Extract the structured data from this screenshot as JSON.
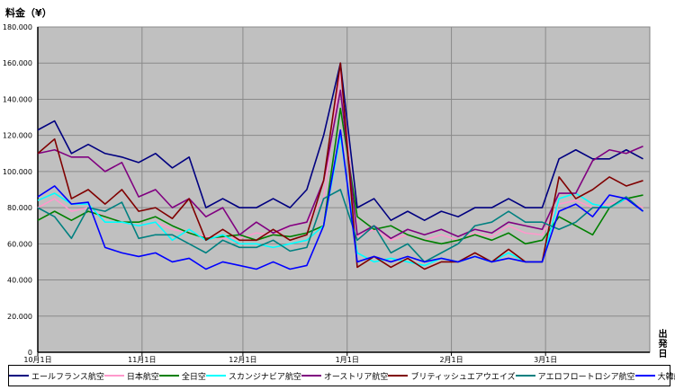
{
  "chart_data": {
    "type": "line",
    "ylabel": "料金（¥）",
    "xlabel": "出発日",
    "ylim": [
      0,
      180000
    ],
    "yticks": [
      "0",
      "20.000",
      "40.000",
      "60.000",
      "80.000",
      "100.000",
      "120.000",
      "140.000",
      "160.000",
      "180.000"
    ],
    "xticks": [
      "10月1日",
      "11月1日",
      "12月1日",
      "1月1日",
      "2月1日",
      "3月1日"
    ],
    "grid": true,
    "legend_position": "bottom",
    "x": [
      "10/1",
      "10/6",
      "10/11",
      "10/16",
      "10/21",
      "10/26",
      "10/31",
      "11/5",
      "11/10",
      "11/15",
      "11/20",
      "11/25",
      "11/30",
      "12/5",
      "12/10",
      "12/15",
      "12/20",
      "12/25",
      "12/30",
      "1/4",
      "1/9",
      "1/14",
      "1/19",
      "1/24",
      "1/29",
      "2/3",
      "2/8",
      "2/13",
      "2/18",
      "2/23",
      "2/28",
      "3/5",
      "3/10",
      "3/15",
      "3/20",
      "3/25",
      "3/30"
    ],
    "series": [
      {
        "name": "エールフランス航空",
        "color": "#000080",
        "values": [
          123000,
          128000,
          110000,
          115000,
          110000,
          108000,
          105000,
          110000,
          102000,
          108000,
          80000,
          85000,
          80000,
          80000,
          85000,
          80000,
          90000,
          120000,
          160000,
          80000,
          85000,
          73000,
          78000,
          73000,
          78000,
          75000,
          80000,
          80000,
          85000,
          80000,
          80000,
          107000,
          112000,
          107000,
          107000,
          112000,
          107000
        ]
      },
      {
        "name": "日本航空",
        "color": "#ff99cc",
        "values": [
          80000,
          85000,
          78000,
          80000,
          75000,
          72000,
          70000,
          72000,
          68000,
          66000,
          64000,
          63000,
          63000,
          66000,
          65000,
          70000,
          72000,
          85000,
          155000,
          64000,
          68000,
          62000,
          65000,
          62000,
          65000,
          62000,
          66000,
          64000,
          70000,
          66000,
          65000,
          82000,
          84000,
          80000,
          82000,
          84000,
          80000
        ]
      },
      {
        "name": "全日空",
        "color": "#008000",
        "values": [
          73000,
          78000,
          73000,
          78000,
          75000,
          72000,
          72000,
          75000,
          70000,
          66000,
          63000,
          64000,
          65000,
          62000,
          65000,
          64000,
          66000,
          70000,
          135000,
          75000,
          68000,
          70000,
          65000,
          62000,
          60000,
          62000,
          65000,
          62000,
          66000,
          60000,
          62000,
          75000,
          70000,
          65000,
          80000,
          85000,
          87000
        ]
      },
      {
        "name": "スカンジナビア航空",
        "color": "#00ffff",
        "values": [
          84000,
          88000,
          82000,
          82000,
          72000,
          72000,
          70000,
          72000,
          62000,
          68000,
          62000,
          65000,
          60000,
          60000,
          58000,
          60000,
          62000,
          70000,
          120000,
          55000,
          50000,
          52000,
          50000,
          48000,
          52000,
          50000,
          53000,
          50000,
          55000,
          50000,
          50000,
          85000,
          88000,
          82000,
          80000,
          85000,
          78000
        ]
      },
      {
        "name": "オーストリア航空",
        "color": "#800080",
        "values": [
          110000,
          112000,
          108000,
          108000,
          100000,
          105000,
          86000,
          90000,
          80000,
          85000,
          75000,
          80000,
          65000,
          72000,
          66000,
          70000,
          72000,
          95000,
          145000,
          65000,
          70000,
          63000,
          68000,
          65000,
          68000,
          64000,
          68000,
          66000,
          72000,
          70000,
          68000,
          88000,
          88000,
          106000,
          112000,
          110000,
          114000
        ]
      },
      {
        "name": "ブリティッシュエアウエイズ",
        "color": "#800000",
        "values": [
          110000,
          118000,
          85000,
          90000,
          82000,
          90000,
          78000,
          80000,
          74000,
          85000,
          62000,
          68000,
          62000,
          62000,
          68000,
          62000,
          65000,
          95000,
          160000,
          47000,
          53000,
          47000,
          52000,
          46000,
          50000,
          50000,
          55000,
          50000,
          57000,
          50000,
          50000,
          97000,
          85000,
          90000,
          97000,
          92000,
          95000
        ]
      },
      {
        "name": "アエロフロートロシア航空",
        "color": "#008080",
        "values": [
          80000,
          75000,
          63000,
          80000,
          78000,
          83000,
          63000,
          65000,
          65000,
          60000,
          55000,
          62000,
          58000,
          58000,
          62000,
          56000,
          58000,
          85000,
          90000,
          62000,
          70000,
          55000,
          60000,
          50000,
          55000,
          60000,
          70000,
          72000,
          78000,
          72000,
          72000,
          68000,
          72000,
          80000,
          80000,
          86000,
          78000
        ]
      },
      {
        "name": "大韓航空",
        "color": "#0000ff",
        "values": [
          86000,
          92000,
          82000,
          83000,
          58000,
          55000,
          53000,
          55000,
          50000,
          52000,
          46000,
          50000,
          48000,
          46000,
          50000,
          46000,
          48000,
          70000,
          123000,
          50000,
          53000,
          50000,
          53000,
          50000,
          52000,
          50000,
          53000,
          50000,
          52000,
          50000,
          50000,
          78000,
          82000,
          75000,
          87000,
          85000,
          78000
        ]
      }
    ]
  }
}
